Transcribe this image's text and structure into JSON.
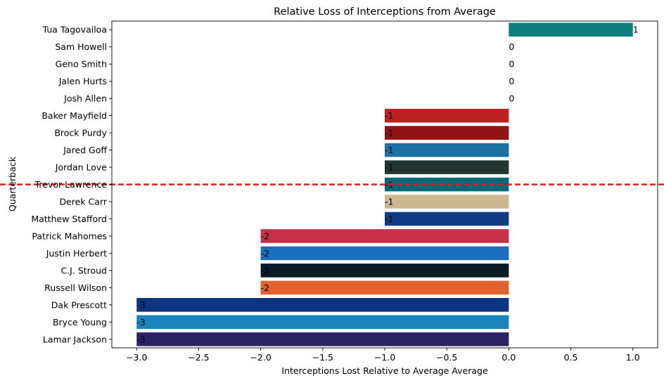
{
  "chart_data": {
    "type": "bar",
    "orientation": "horizontal",
    "title": "Relative Loss of Interceptions from Average",
    "xlabel": "Interceptions Lost Relative to Average Average",
    "ylabel": "Quarterback",
    "xlim": [
      -3.2,
      1.2
    ],
    "xticks": [
      -3.0,
      -2.5,
      -2.0,
      -1.5,
      -1.0,
      -0.5,
      0.0,
      0.5,
      1.0
    ],
    "xtick_labels": [
      "−3.0",
      "−2.5",
      "−2.0",
      "−1.5",
      "−1.0",
      "−0.5",
      "0.0",
      "0.5",
      "1.0"
    ],
    "grid": false,
    "categories": [
      "Tua Tagovailoa",
      "Sam Howell",
      "Geno Smith",
      "Jalen Hurts",
      "Josh Allen",
      "Baker Mayfield",
      "Brock Purdy",
      "Jared Goff",
      "Jordan Love",
      "Trevor Lawrence",
      "Derek Carr",
      "Matthew Stafford",
      "Patrick Mahomes",
      "Justin Herbert",
      "C.J. Stroud",
      "Russell Wilson",
      "Dak Prescott",
      "Bryce Young",
      "Lamar Jackson"
    ],
    "values": [
      1,
      0,
      0,
      0,
      0,
      -1,
      -1,
      -1,
      -1,
      -1,
      -1,
      -1,
      -2,
      -2,
      -2,
      -2,
      -3,
      -3,
      -3
    ],
    "value_labels": [
      "1",
      "0",
      "0",
      "0",
      "0",
      "-1",
      "-1",
      "-1",
      "-1",
      "-1",
      "-1",
      "-1",
      "-2",
      "-2",
      "-2",
      "-2",
      "-3",
      "-3",
      "-3"
    ],
    "colors": [
      "#0c807f",
      "#773141",
      "#002244",
      "#004c54",
      "#00338d",
      "#bd2222",
      "#921316",
      "#1a71a3",
      "#203731",
      "#006778",
      "#cbb88e",
      "#0f3a84",
      "#c8304a",
      "#1a6fbf",
      "#091c27",
      "#e2622e",
      "#0e3582",
      "#1a84bd",
      "#2b2363"
    ],
    "reference_line": {
      "axis": "category",
      "category": "Trevor Lawrence",
      "color": "#e31a1c",
      "style": "dashed"
    }
  }
}
